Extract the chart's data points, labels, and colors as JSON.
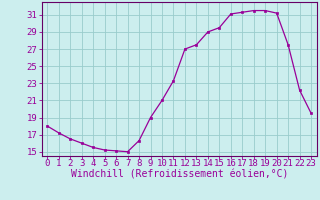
{
  "x": [
    0,
    1,
    2,
    3,
    4,
    5,
    6,
    7,
    8,
    9,
    10,
    11,
    12,
    13,
    14,
    15,
    16,
    17,
    18,
    19,
    20,
    21,
    22,
    23
  ],
  "y": [
    18.0,
    17.2,
    16.5,
    16.0,
    15.5,
    15.2,
    15.1,
    15.0,
    16.3,
    19.0,
    21.0,
    23.3,
    27.0,
    27.5,
    29.0,
    29.5,
    31.1,
    31.3,
    31.5,
    31.5,
    31.2,
    27.5,
    22.2,
    19.5
  ],
  "line_color": "#990099",
  "marker": "s",
  "marker_size": 1.8,
  "bg_color": "#cceeee",
  "grid_color": "#99cccc",
  "xlabel": "Windchill (Refroidissement éolien,°C)",
  "ylim": [
    14.5,
    32.5
  ],
  "xlim": [
    -0.5,
    23.5
  ],
  "yticks": [
    15,
    17,
    19,
    21,
    23,
    25,
    27,
    29,
    31
  ],
  "xtick_labels": [
    "0",
    "1",
    "2",
    "3",
    "4",
    "5",
    "6",
    "7",
    "8",
    "9",
    "10",
    "11",
    "12",
    "13",
    "14",
    "15",
    "16",
    "17",
    "18",
    "19",
    "20",
    "21",
    "22",
    "23"
  ],
  "font_color": "#990099",
  "tick_fontsize": 6.5,
  "xlabel_fontsize": 7.0
}
